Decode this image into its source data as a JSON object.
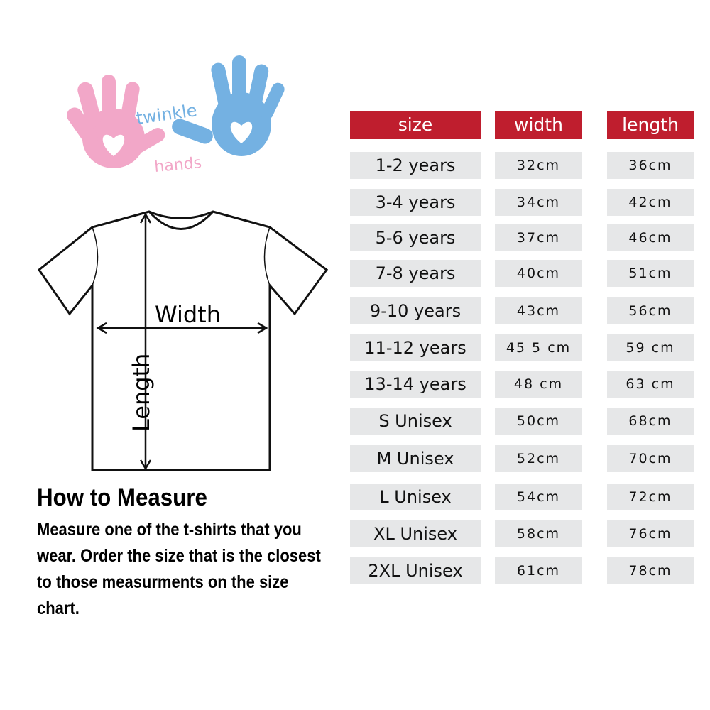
{
  "logo": {
    "text_line1": "twinkle",
    "text_line2": "hands",
    "colors": {
      "pink": "#f2a7c8",
      "blue": "#74b1e2"
    }
  },
  "diagram": {
    "width_label": "Width",
    "length_label": "Length"
  },
  "how_to": {
    "title": "How to Measure",
    "text": "Measure one of the t-shirts that you wear. Order the size that is the closest to those measurments on the size chart."
  },
  "table": {
    "header_color": "#bf1e2e",
    "headers": [
      "size",
      "width",
      "length"
    ],
    "rows": [
      {
        "size": "1-2 years",
        "width": "32cm",
        "length": "36cm"
      },
      {
        "size": "3-4 years",
        "width": "34cm",
        "length": "42cm"
      },
      {
        "size": "5-6 years",
        "width": "37cm",
        "length": "46cm"
      },
      {
        "size": "7-8 years",
        "width": "40cm",
        "length": "51cm"
      },
      {
        "size": "9-10 years",
        "width": "43cm",
        "length": "56cm"
      },
      {
        "size": "11-12 years",
        "width": "45 5 cm",
        "length": "59 cm"
      },
      {
        "size": "13-14 years",
        "width": "48 cm",
        "length": "63 cm"
      },
      {
        "size": "S Unisex",
        "width": "50cm",
        "length": "68cm"
      },
      {
        "size": "M Unisex",
        "width": "52cm",
        "length": "70cm"
      },
      {
        "size": "L Unisex",
        "width": "54cm",
        "length": "72cm"
      },
      {
        "size": "XL Unisex",
        "width": "58cm",
        "length": "76cm"
      },
      {
        "size": "2XL Unisex",
        "width": "61cm",
        "length": "78cm"
      }
    ]
  }
}
